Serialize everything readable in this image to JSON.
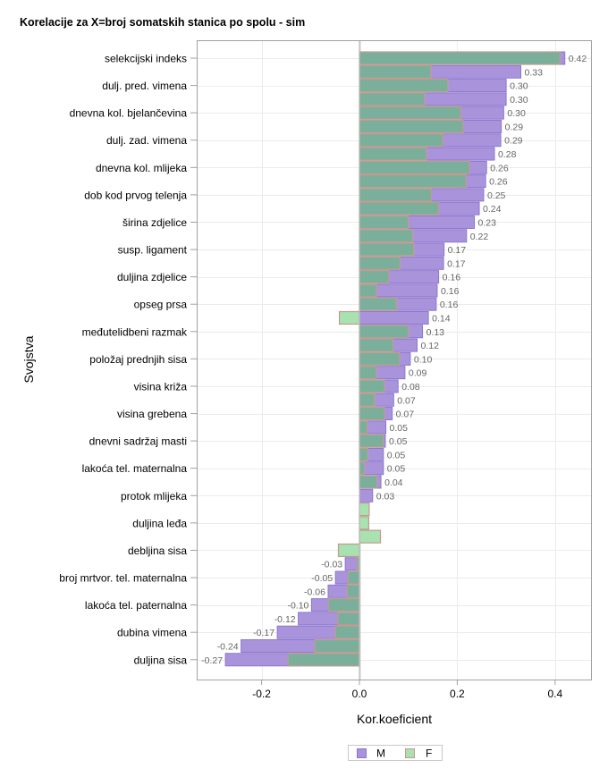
{
  "chart_data": {
    "type": "bar",
    "orientation": "horizontal",
    "title": "Korelacije za X=broj somatskih stanica po spolu - sim",
    "xlabel": "Kor.koeficient",
    "ylabel": "Svojstva",
    "xlim": [
      -0.33,
      0.475
    ],
    "xticks": [
      -0.2,
      0.0,
      0.2,
      0.4
    ],
    "xtick_labels": [
      "-0.2",
      "0.0",
      "0.2",
      "0.4"
    ],
    "grid": true,
    "legend": {
      "position": "bottom-center",
      "entries": [
        {
          "name": "M",
          "color": "#a994dc"
        },
        {
          "name": "F",
          "color": "#a8e2b0"
        }
      ]
    },
    "colors": {
      "M": "#a994dc",
      "M_border": "#8c76cf",
      "F": "#a8e2b0",
      "F_border": "#c49a8f",
      "overlap": "#7ab09b"
    },
    "categories_labeled": [
      "selekcijski indeks",
      "dulj. pred. vimena",
      "dnevna kol. bjelančevina",
      "dulj. zad. vimena",
      "dnevna kol. mlijeka",
      "dob kod prvog telenja",
      "širina zdjelice",
      "susp. ligament",
      "duljina zdjelice",
      "opseg prsa",
      "međutelidbeni razmak",
      "položaj prednjih sisa",
      "visina križa",
      "visina grebena",
      "dnevni sadržaj masti",
      "lakoća tel. maternalna",
      "protok mlijeka",
      "duljina leđa",
      "debljina sisa",
      "broj mrtvor. tel. maternalna",
      "lakoća tel. paternalna",
      "dubina vimena",
      "duljina sisa"
    ],
    "rows": [
      {
        "label": "selekcijski indeks",
        "M": 0.42,
        "F": 0.41,
        "M_text": "0.42"
      },
      {
        "label": "",
        "M": 0.33,
        "F": 0.146,
        "M_text": "0.33"
      },
      {
        "label": "dulj. pred. vimena",
        "M": 0.3,
        "F": 0.181,
        "M_text": "0.30"
      },
      {
        "label": "",
        "M": 0.3,
        "F": 0.133,
        "M_text": "0.30"
      },
      {
        "label": "dnevna kol. bjelančevina",
        "M": 0.295,
        "F": 0.207,
        "M_text": "0.30"
      },
      {
        "label": "",
        "M": 0.29,
        "F": 0.212,
        "M_text": "0.29"
      },
      {
        "label": "dulj. zad. vimena",
        "M": 0.289,
        "F": 0.171,
        "M_text": "0.29"
      },
      {
        "label": "",
        "M": 0.276,
        "F": 0.137,
        "M_text": "0.28"
      },
      {
        "label": "dnevna kol. mlijeka",
        "M": 0.26,
        "F": 0.225,
        "M_text": "0.26"
      },
      {
        "label": "",
        "M": 0.258,
        "F": 0.218,
        "M_text": "0.26"
      },
      {
        "label": "dob kod prvog telenja",
        "M": 0.254,
        "F": 0.147,
        "M_text": "0.25"
      },
      {
        "label": "",
        "M": 0.245,
        "F": 0.162,
        "M_text": "0.24"
      },
      {
        "label": "širina zdjelice",
        "M": 0.235,
        "F": 0.1,
        "M_text": "0.23"
      },
      {
        "label": "",
        "M": 0.219,
        "F": 0.109,
        "M_text": "0.22"
      },
      {
        "label": "susp. ligament",
        "M": 0.173,
        "F": 0.111,
        "M_text": "0.17"
      },
      {
        "label": "",
        "M": 0.172,
        "F": 0.083,
        "M_text": "0.17"
      },
      {
        "label": "duljina zdjelice",
        "M": 0.162,
        "F": 0.06,
        "M_text": "0.16"
      },
      {
        "label": "",
        "M": 0.159,
        "F": 0.035,
        "M_text": "0.16"
      },
      {
        "label": "opseg prsa",
        "M": 0.157,
        "F": 0.076,
        "M_text": "0.16"
      },
      {
        "label": "",
        "M": 0.141,
        "F": -0.041,
        "M_text": "0.14"
      },
      {
        "label": "međutelidbeni razmak",
        "M": 0.129,
        "F": 0.1,
        "M_text": "0.13"
      },
      {
        "label": "",
        "M": 0.118,
        "F": 0.069,
        "M_text": "0.12"
      },
      {
        "label": "položaj prednjih sisa",
        "M": 0.104,
        "F": 0.082,
        "M_text": "0.10"
      },
      {
        "label": "",
        "M": 0.093,
        "F": 0.034,
        "M_text": "0.09"
      },
      {
        "label": "visina križa",
        "M": 0.079,
        "F": 0.051,
        "M_text": "0.08"
      },
      {
        "label": "",
        "M": 0.07,
        "F": 0.031,
        "M_text": "0.07"
      },
      {
        "label": "visina grebena",
        "M": 0.067,
        "F": 0.051,
        "M_text": "0.07"
      },
      {
        "label": "",
        "M": 0.054,
        "F": 0.016,
        "M_text": "0.05"
      },
      {
        "label": "dnevni sadržaj masti",
        "M": 0.053,
        "F": 0.049,
        "M_text": "0.05"
      },
      {
        "label": "",
        "M": 0.049,
        "F": 0.017,
        "M_text": "0.05"
      },
      {
        "label": "lakoća tel. maternalna",
        "M": 0.049,
        "F": 0.01,
        "M_text": "0.05"
      },
      {
        "label": "",
        "M": 0.044,
        "F": 0.036,
        "M_text": "0.04"
      },
      {
        "label": "protok mlijeka",
        "M": 0.027,
        "F": 0.0,
        "M_text": "0.03"
      },
      {
        "label": "",
        "M": 0.0,
        "F": 0.02,
        "M_text": ""
      },
      {
        "label": "duljina leđa",
        "M": 0.0,
        "F": 0.019,
        "M_text": ""
      },
      {
        "label": "",
        "M": 0.0,
        "F": 0.043,
        "M_text": ""
      },
      {
        "label": "debljina sisa",
        "M": 0.0,
        "F": -0.043,
        "M_text": ""
      },
      {
        "label": "",
        "M": -0.029,
        "F": -0.005,
        "M_text": "-0.03"
      },
      {
        "label": "broj mrtvor. tel. maternalna",
        "M": -0.049,
        "F": -0.023,
        "M_text": "-0.05"
      },
      {
        "label": "",
        "M": -0.064,
        "F": -0.025,
        "M_text": "-0.06"
      },
      {
        "label": "lakoća tel. paternalna",
        "M": -0.098,
        "F": -0.063,
        "M_text": "-0.10"
      },
      {
        "label": "",
        "M": -0.125,
        "F": -0.044,
        "M_text": "-0.12"
      },
      {
        "label": "dubina vimena",
        "M": -0.168,
        "F": -0.049,
        "M_text": "-0.17"
      },
      {
        "label": "",
        "M": -0.242,
        "F": -0.091,
        "M_text": "-0.24"
      },
      {
        "label": "duljina sisa",
        "M": -0.274,
        "F": -0.146,
        "M_text": "-0.27"
      }
    ]
  }
}
